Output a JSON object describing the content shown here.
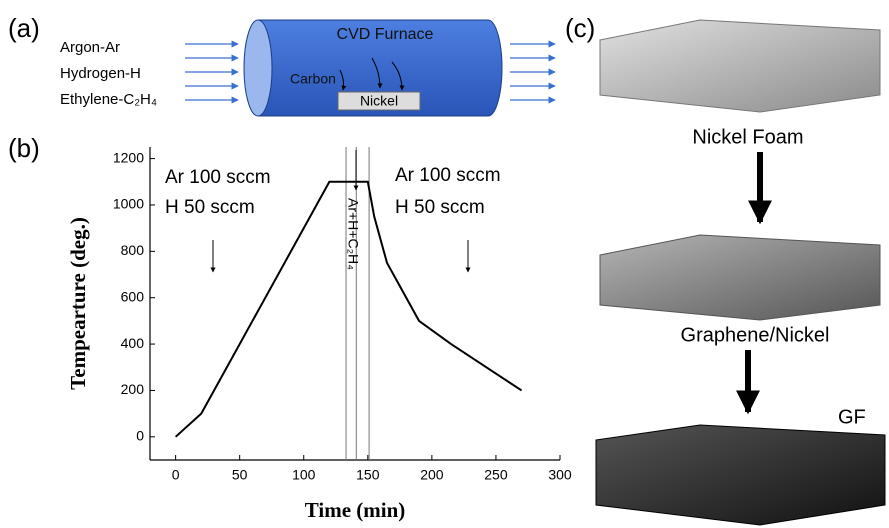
{
  "panels": {
    "a": "(a)",
    "b": "(b)",
    "c": "(c)"
  },
  "furnace": {
    "gases": [
      "Argon-Ar",
      "Hydrogen-H",
      "Ethylene-C₂H₄"
    ],
    "title": "CVD Furnace",
    "carbon": "Carbon",
    "substrate": "Nickel"
  },
  "stages": [
    "Nickel Foam",
    "Graphene/Nickel",
    "GF"
  ],
  "chart_data": {
    "type": "line",
    "xlabel": "Time (min)",
    "ylabel": "Tempearture (deg.)",
    "x": [
      0,
      20,
      120,
      150,
      155,
      165,
      175,
      190,
      215,
      270
    ],
    "values": [
      0,
      100,
      1100,
      1100,
      950,
      750,
      650,
      500,
      400,
      200
    ],
    "color": "#000000",
    "xlim": [
      -20,
      300
    ],
    "ylim": [
      -100,
      1250
    ],
    "xticks": [
      0,
      50,
      100,
      150,
      200,
      250,
      300
    ],
    "yticks": [
      0,
      200,
      400,
      600,
      800,
      1000,
      1200
    ],
    "vlines": [
      133,
      141,
      151
    ],
    "annotations": [
      "Ar 100 sccm",
      "H 50 sccm",
      "Ar 100 sccm",
      "H 50 sccm",
      "Ar+H+C₂H₄"
    ]
  }
}
